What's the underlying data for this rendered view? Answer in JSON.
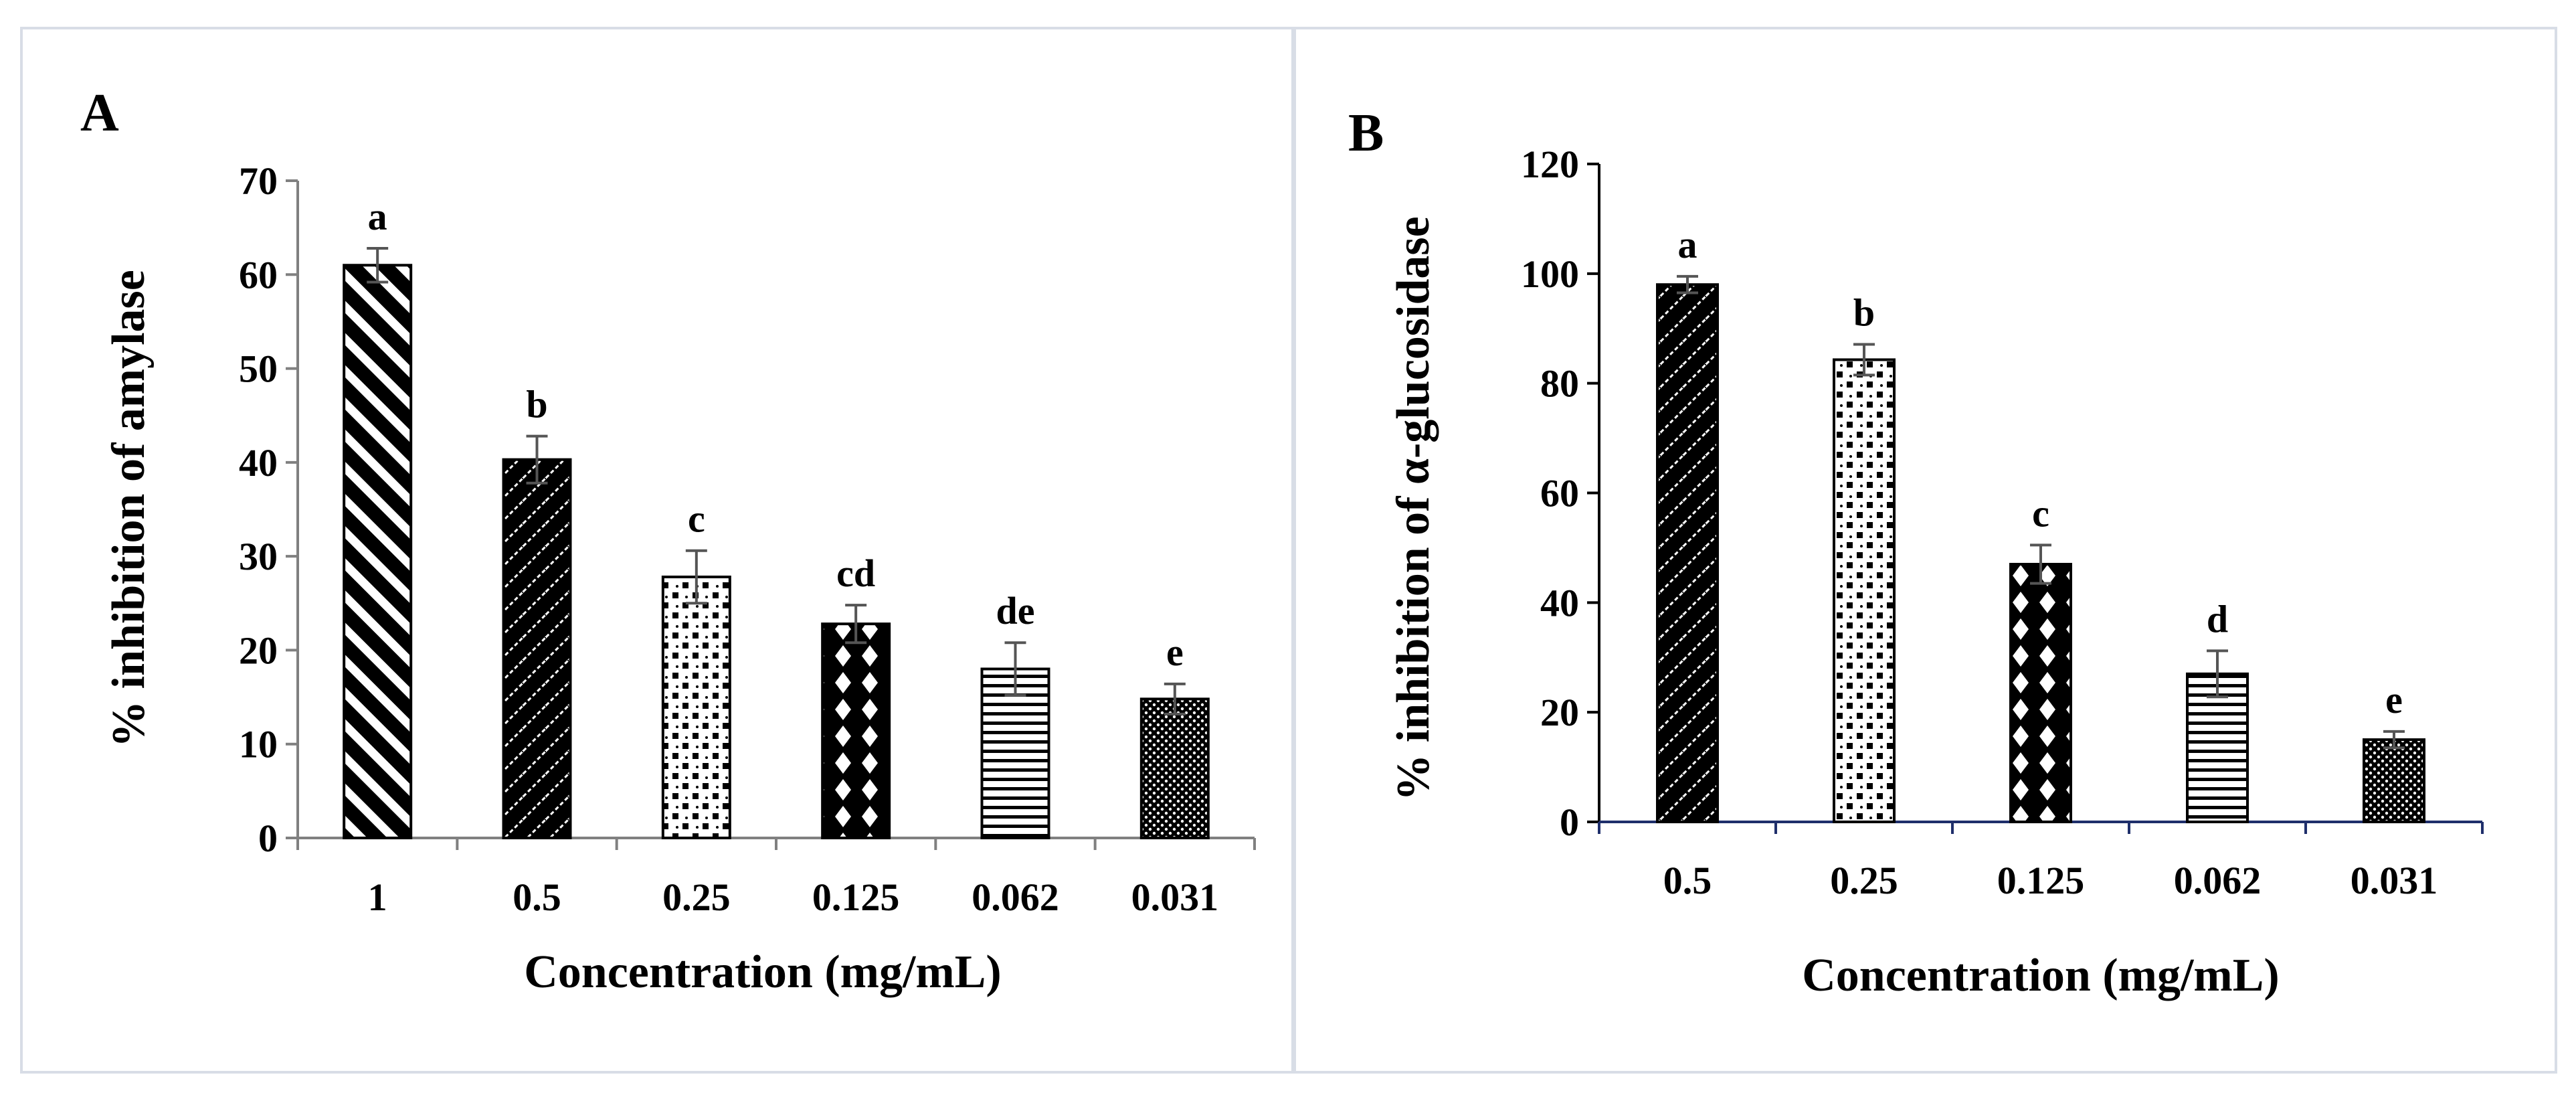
{
  "chart_data": [
    {
      "type": "bar",
      "panel_label": "A",
      "title": "",
      "categories": [
        "1",
        "0.5",
        "0.25",
        "0.125",
        "0.062",
        "0.031"
      ],
      "values": [
        61,
        40.3,
        27.8,
        22.8,
        18,
        14.8
      ],
      "errors": [
        1.8,
        2.5,
        2.8,
        2.0,
        2.8,
        1.6
      ],
      "significance": [
        "a",
        "b",
        "c",
        "cd",
        "de",
        "e"
      ],
      "patterns": [
        "diag-stripes",
        "zigzag",
        "checker",
        "diamonds",
        "horizontal-lines",
        "dots"
      ],
      "xlabel": "Concentration (mg/mL)",
      "ylabel": "% inhibition of amylase",
      "ylim": [
        0,
        70
      ],
      "yticks": [
        0,
        10,
        20,
        30,
        40,
        50,
        60,
        70
      ],
      "grid": false,
      "axis_color": "#808080"
    },
    {
      "type": "bar",
      "panel_label": "B",
      "title": "",
      "categories": [
        "0.5",
        "0.25",
        "0.125",
        "0.062",
        "0.031"
      ],
      "values": [
        98,
        84.3,
        47,
        27,
        15
      ],
      "errors": [
        1.5,
        2.8,
        3.5,
        4.2,
        1.5
      ],
      "significance": [
        "a",
        "b",
        "c",
        "d",
        "e"
      ],
      "patterns": [
        "zigzag",
        "checker",
        "diamonds",
        "horizontal-lines",
        "dots"
      ],
      "xlabel": "Concentration (mg/mL)",
      "ylabel": "% inhibition of α-glucosidase",
      "ylim": [
        0,
        120
      ],
      "yticks": [
        0,
        20,
        40,
        60,
        80,
        100,
        120
      ],
      "grid": false,
      "axis_color": "#000000",
      "baseline_color": "#1f2f6b"
    }
  ],
  "colors": {
    "panel_border": "#d8dde6",
    "bar_stroke": "#000000",
    "error_bar": "#555555"
  }
}
